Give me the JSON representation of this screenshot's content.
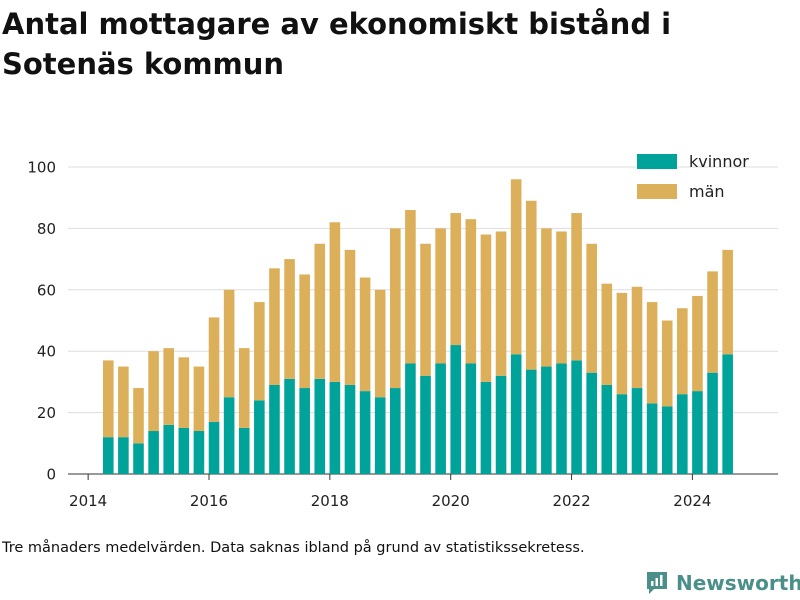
{
  "title": "Antal mottagare av ekonomiskt bistånd i Sotenäs kommun",
  "footnote": "Tre månaders medelvärden. Data saknas ibland på grund av statistikssekretess.",
  "brand": {
    "name": "Newsworthy",
    "icon": "newsworthy-logo-icon",
    "color": "#4a8f8a"
  },
  "chart_data": {
    "type": "bar",
    "stacked": true,
    "x_axis": {
      "type": "date",
      "range": [
        "2013-09-01",
        "2025-06-01"
      ],
      "ticks": [
        "2014",
        "2016",
        "2018",
        "2020",
        "2022",
        "2024"
      ]
    },
    "y_axis": {
      "range": [
        0,
        100
      ],
      "ticks": [
        0,
        20,
        40,
        60,
        80,
        100
      ]
    },
    "grid": "horizontal",
    "legend_position": "top-right",
    "x": [
      "2014-05",
      "2014-08",
      "2014-11",
      "2015-02",
      "2015-05",
      "2015-08",
      "2015-11",
      "2016-02",
      "2016-05",
      "2016-08",
      "2016-11",
      "2017-02",
      "2017-05",
      "2017-08",
      "2017-11",
      "2018-02",
      "2018-05",
      "2018-08",
      "2018-11",
      "2019-02",
      "2019-05",
      "2019-08",
      "2019-11",
      "2020-02",
      "2020-05",
      "2020-08",
      "2020-11",
      "2021-02",
      "2021-05",
      "2021-08",
      "2021-11",
      "2022-02",
      "2022-05",
      "2022-08",
      "2022-11",
      "2023-02",
      "2023-05",
      "2023-08",
      "2023-11",
      "2024-02",
      "2024-05",
      "2024-08"
    ],
    "series": [
      {
        "name": "kvinnor",
        "color": "#00a39a",
        "values": [
          12,
          12,
          10,
          14,
          16,
          15,
          14,
          17,
          25,
          15,
          24,
          29,
          31,
          28,
          31,
          30,
          29,
          27,
          25,
          28,
          36,
          32,
          36,
          42,
          36,
          30,
          32,
          39,
          34,
          35,
          36,
          37,
          33,
          29,
          26,
          28,
          23,
          22,
          26,
          27,
          33,
          39
        ]
      },
      {
        "name": "män",
        "color": "#dcb05a",
        "values": [
          25,
          23,
          18,
          26,
          25,
          23,
          21,
          34,
          35,
          26,
          32,
          38,
          39,
          37,
          44,
          52,
          44,
          37,
          35,
          52,
          50,
          43,
          44,
          43,
          47,
          48,
          47,
          57,
          55,
          45,
          43,
          48,
          42,
          33,
          33,
          33,
          33,
          28,
          28,
          31,
          33,
          34
        ]
      }
    ]
  }
}
